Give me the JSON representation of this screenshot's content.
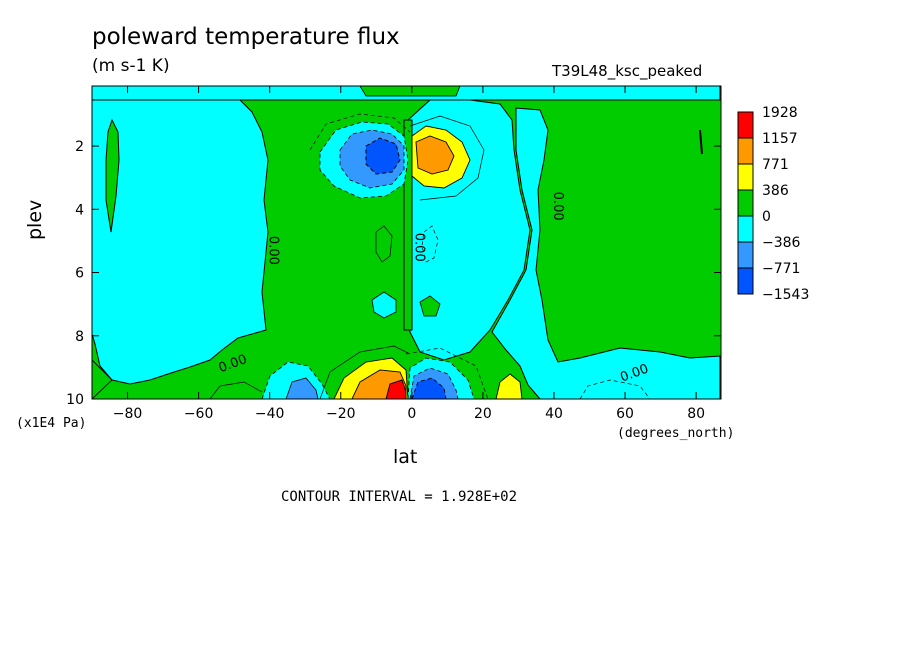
{
  "chart_data": {
    "type": "contour",
    "title": "poleward temperature flux",
    "units": "(m s-1 K)",
    "run_label": "T39L48_ksc_peaked",
    "xlabel": "lat",
    "x_unit_label": "(degrees_north)",
    "ylabel": "plev",
    "y_unit_label": "(x1E4 Pa)",
    "contour_interval_text": "CONTOUR INTERVAL = 1.928E+02",
    "xlim": [
      -90,
      87
    ],
    "ylim": [
      10,
      0.1
    ],
    "x_ticks": [
      -80,
      -60,
      -40,
      -20,
      0,
      20,
      40,
      60,
      80
    ],
    "y_ticks": [
      2,
      4,
      6,
      8,
      10
    ],
    "contour_labels": [
      {
        "text": "0.00",
        "lat": 1,
        "plev": 5.2
      },
      {
        "text": "0.00",
        "lat": -40,
        "plev": 5.3
      },
      {
        "text": "0.00",
        "lat": 40,
        "plev": 3.9
      },
      {
        "text": "0.00",
        "lat": -50,
        "plev": 9.0
      },
      {
        "text": "0.00",
        "lat": 63,
        "plev": 9.3
      }
    ],
    "legend": {
      "levels": [
        "1928",
        "1157",
        "771",
        "386",
        "0",
        "-386",
        "-771",
        "-1543"
      ],
      "colors": [
        "#ff0000",
        "#ff9900",
        "#ffff00",
        "#00cc00",
        "#00ffff",
        "#3399ff",
        "#0055ff"
      ]
    },
    "regions": [
      {
        "level": "positive",
        "lat": 8,
        "plev": 2.3,
        "peak": 1157
      },
      {
        "level": "negative",
        "lat": -7,
        "plev": 2.3,
        "peak": -1543
      },
      {
        "level": "positive",
        "lat": -6,
        "plev": 9.6,
        "peak": 1928
      },
      {
        "level": "negative",
        "lat": 6,
        "plev": 9.6,
        "peak": -1543
      },
      {
        "level": "positive",
        "lat": 28,
        "plev": 9.7,
        "peak": 771
      },
      {
        "level": "negative",
        "lat": -30,
        "plev": 9.7,
        "peak": -771
      }
    ]
  }
}
